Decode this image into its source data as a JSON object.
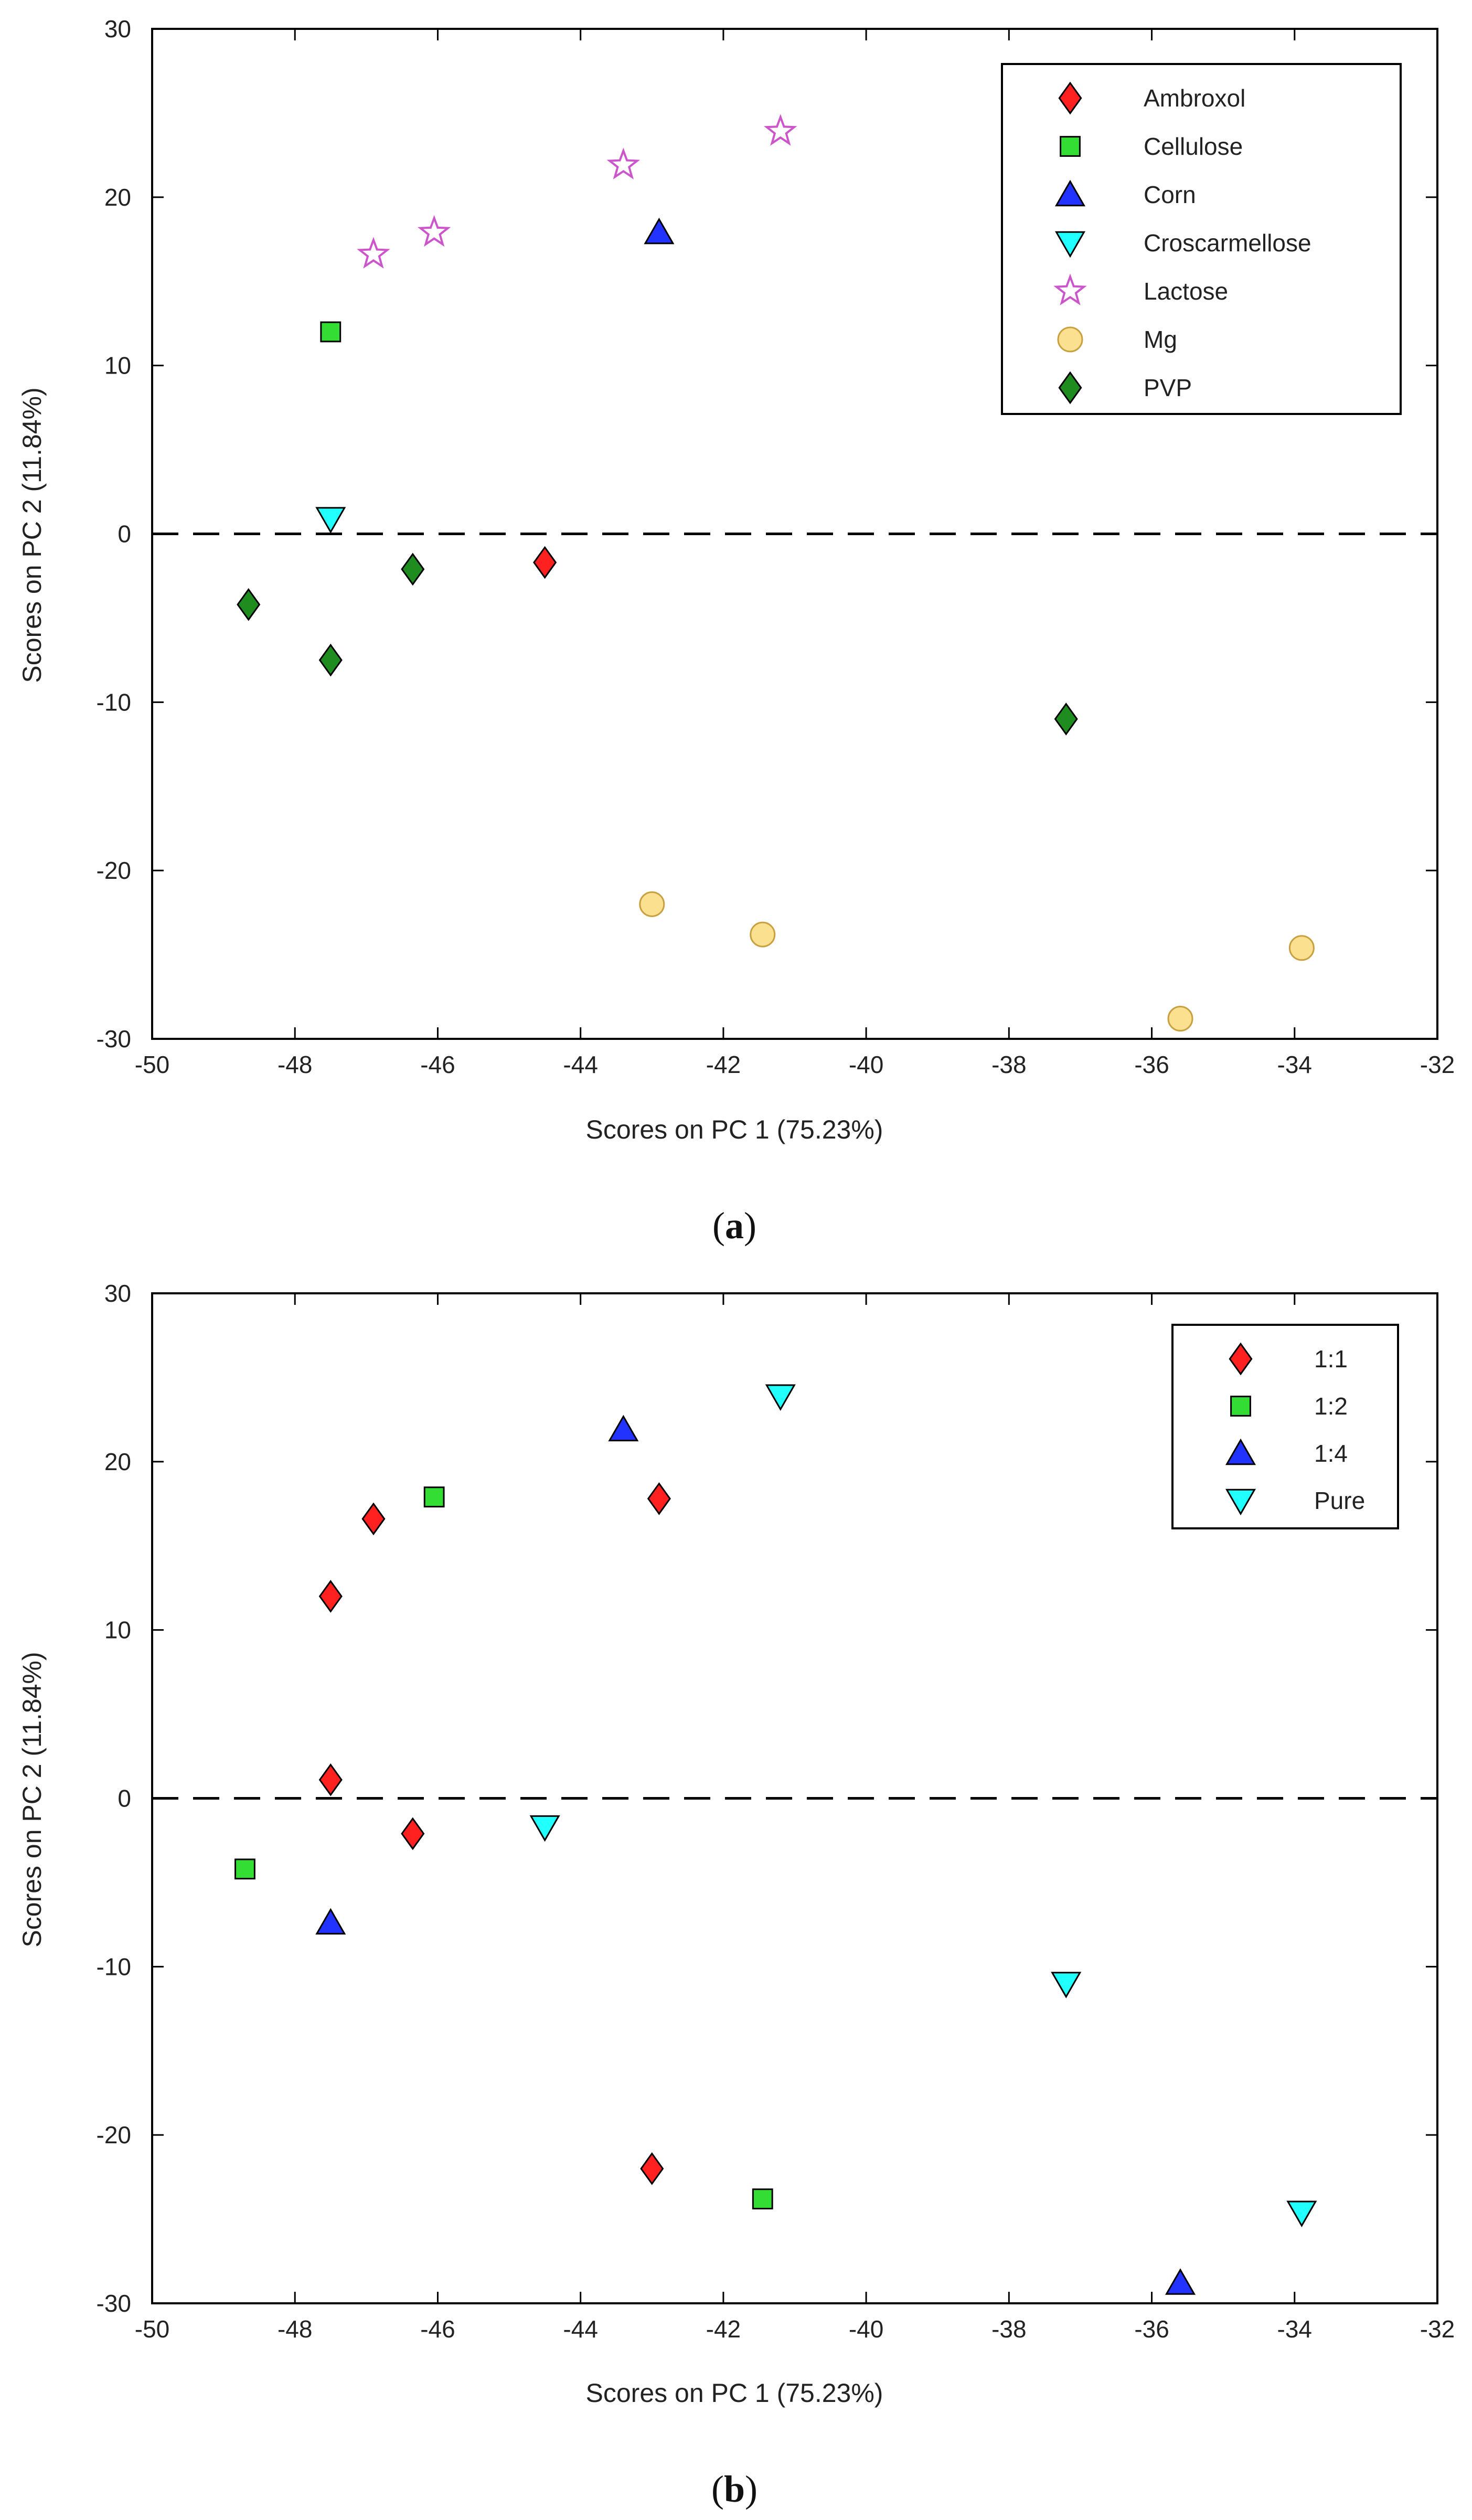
{
  "chart_data": [
    {
      "type": "scatter",
      "caption": "a",
      "xlabel": "Scores on PC 1 (75.23%)",
      "ylabel": "Scores on PC 2 (11.84%)",
      "xlim": [
        -50,
        -32
      ],
      "ylim": [
        -30,
        30
      ],
      "xticks": [
        -50,
        -48,
        -46,
        -44,
        -42,
        -40,
        -38,
        -36,
        -34,
        -32
      ],
      "yticks": [
        -30,
        -20,
        -10,
        0,
        10,
        20,
        30
      ],
      "zero_line": true,
      "legend_position": "top-right",
      "series": [
        {
          "name": "Ambroxol",
          "marker": "diamond",
          "color": "#ff2020",
          "x": [
            -44.5
          ],
          "y": [
            -1.7
          ]
        },
        {
          "name": "Cellulose",
          "marker": "square",
          "color": "#33dd33",
          "x": [
            -47.5
          ],
          "y": [
            12.0
          ]
        },
        {
          "name": "Corn",
          "marker": "triangle-up",
          "color": "#2233ff",
          "x": [
            -42.9
          ],
          "y": [
            17.9
          ]
        },
        {
          "name": "Croscarmellose",
          "marker": "triangle-down",
          "color": "#22ffff",
          "x": [
            -47.5
          ],
          "y": [
            0.9
          ]
        },
        {
          "name": "Lactose",
          "marker": "star",
          "color": "#cc55cc",
          "x": [
            -46.9,
            -46.05,
            -43.4,
            -41.2
          ],
          "y": [
            16.6,
            17.9,
            21.9,
            23.9
          ]
        },
        {
          "name": "Mg",
          "marker": "circle",
          "color": "#fbe090",
          "x": [
            -43.0,
            -41.45,
            -35.6,
            -33.9
          ],
          "y": [
            -22.0,
            -23.8,
            -28.8,
            -24.6
          ]
        },
        {
          "name": "PVP",
          "marker": "diamond",
          "color": "#1e8c1e",
          "x": [
            -48.65,
            -47.5,
            -46.35,
            -37.2
          ],
          "y": [
            -4.2,
            -7.5,
            -2.1,
            -11.0
          ]
        }
      ]
    },
    {
      "type": "scatter",
      "caption": "b",
      "xlabel": "Scores on PC 1 (75.23%)",
      "ylabel": "Scores on PC 2 (11.84%)",
      "xlim": [
        -50,
        -32
      ],
      "ylim": [
        -30,
        30
      ],
      "xticks": [
        -50,
        -48,
        -46,
        -44,
        -42,
        -40,
        -38,
        -36,
        -34,
        -32
      ],
      "yticks": [
        -30,
        -20,
        -10,
        0,
        10,
        20,
        30
      ],
      "zero_line": true,
      "legend_position": "top-right",
      "series": [
        {
          "name": "1:1",
          "marker": "diamond",
          "color": "#ff2020",
          "x": [
            -47.5,
            -46.9,
            -47.5,
            -46.35,
            -42.9,
            -43.0
          ],
          "y": [
            12.0,
            16.6,
            1.1,
            -2.1,
            17.8,
            -22.0
          ]
        },
        {
          "name": "1:2",
          "marker": "square",
          "color": "#33dd33",
          "x": [
            -46.05,
            -48.7,
            -41.45
          ],
          "y": [
            17.9,
            -4.2,
            -23.8
          ]
        },
        {
          "name": "1:4",
          "marker": "triangle-up",
          "color": "#2233ff",
          "x": [
            -43.4,
            -47.5,
            -35.6
          ],
          "y": [
            21.9,
            -7.4,
            -28.8
          ]
        },
        {
          "name": "Pure",
          "marker": "triangle-down",
          "color": "#22ffff",
          "x": [
            -41.2,
            -44.5,
            -37.2,
            -33.9
          ],
          "y": [
            23.9,
            -1.7,
            -11.0,
            -24.6
          ]
        }
      ]
    }
  ]
}
